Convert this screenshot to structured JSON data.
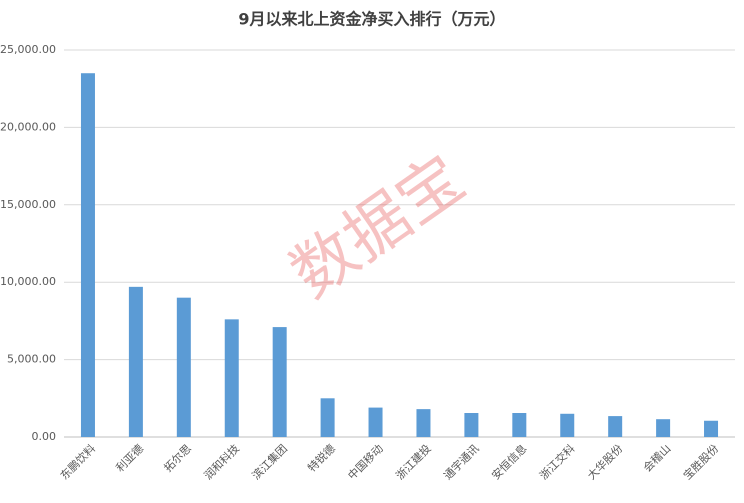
{
  "chart_data": {
    "type": "bar",
    "title": "9月以来北上资金净买入排行（万元）",
    "watermark": "数据宝",
    "categories": [
      "东鹏饮料",
      "利亚德",
      "拓尔思",
      "润和科技",
      "滨江集团",
      "特锐德",
      "中国移动",
      "浙江建投",
      "通宇通讯",
      "安恒信息",
      "浙江交科",
      "大华股份",
      "会稽山",
      "宝胜股份"
    ],
    "values": [
      23500,
      9700,
      9000,
      7600,
      7100,
      2500,
      1900,
      1800,
      1550,
      1550,
      1500,
      1350,
      1150,
      1050
    ],
    "color": "#5b9bd5",
    "ylim": [
      0,
      25000
    ],
    "yticks": [
      {
        "value": 0,
        "label": "0.00"
      },
      {
        "value": 5000,
        "label": "5,000.00"
      },
      {
        "value": 10000,
        "label": "10,000.00"
      },
      {
        "value": 15000,
        "label": "15,000.00"
      },
      {
        "value": 20000,
        "label": "20,000.00"
      },
      {
        "value": 25000,
        "label": "25,000.00"
      }
    ],
    "grid": true
  }
}
